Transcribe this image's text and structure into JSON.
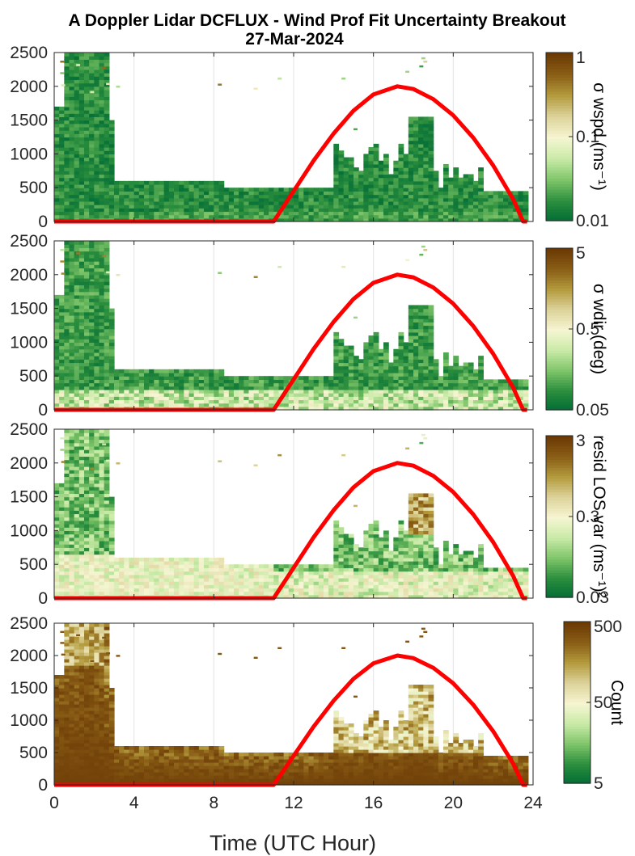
{
  "title": "A Doppler Lidar DCFLUX - Wind Prof Fit Uncertainty Breakout",
  "subtitle": "27-Mar-2024",
  "xlabel": "Time (UTC Hour)",
  "colors": {
    "curve": "#ff0000",
    "colormap": [
      "#006b36",
      "#2c8f3e",
      "#7fc56a",
      "#c9eaa7",
      "#f6f5d2",
      "#ddd39a",
      "#b39b3e",
      "#8a5e16",
      "#6b3a05"
    ]
  },
  "chart_data": [
    {
      "type": "heatmap",
      "name": "sigma-wspd",
      "xlim": [
        0,
        24
      ],
      "ylim": [
        0,
        2500
      ],
      "xticks": [
        0,
        4,
        8,
        12,
        16,
        20,
        24
      ],
      "yticks": [
        0,
        500,
        1000,
        1500,
        2000,
        2500
      ],
      "grid": true,
      "colorbar": {
        "label": "σ wspd (ms⁻¹)",
        "scale": "log",
        "range": [
          0.01,
          1
        ],
        "ticks": [
          "1",
          "0.1",
          "0.01"
        ]
      },
      "overlay": {
        "type": "line",
        "color": "#ff0000",
        "x": [
          0,
          11,
          12,
          13,
          14,
          15,
          16,
          17.2,
          18,
          19,
          20,
          21,
          22,
          23,
          23.5,
          23.7
        ],
        "y": [
          0,
          0,
          450,
          900,
          1300,
          1640,
          1880,
          2000,
          1960,
          1810,
          1570,
          1240,
          830,
          330,
          0,
          0
        ]
      }
    },
    {
      "type": "heatmap",
      "name": "sigma-wdir",
      "xlim": [
        0,
        24
      ],
      "ylim": [
        0,
        2500
      ],
      "xticks": [
        0,
        4,
        8,
        12,
        16,
        20,
        24
      ],
      "yticks": [
        0,
        500,
        1000,
        1500,
        2000,
        2500
      ],
      "grid": true,
      "colorbar": {
        "label": "σ wdir (deg)",
        "scale": "log",
        "range": [
          0.05,
          5
        ],
        "ticks": [
          "5",
          "0.5",
          "0.05"
        ]
      },
      "overlay": {
        "type": "line",
        "color": "#ff0000",
        "x": [
          0,
          11,
          12,
          13,
          14,
          15,
          16,
          17.2,
          18,
          19,
          20,
          21,
          22,
          23,
          23.5,
          23.7
        ],
        "y": [
          0,
          0,
          450,
          900,
          1300,
          1640,
          1880,
          2000,
          1960,
          1810,
          1570,
          1240,
          830,
          330,
          0,
          0
        ]
      }
    },
    {
      "type": "heatmap",
      "name": "resid-los-var",
      "xlim": [
        0,
        24
      ],
      "ylim": [
        0,
        2500
      ],
      "xticks": [
        0,
        4,
        8,
        12,
        16,
        20,
        24
      ],
      "yticks": [
        0,
        500,
        1000,
        1500,
        2000,
        2500
      ],
      "grid": true,
      "colorbar": {
        "label": "resid LOS var (ms⁻¹)²",
        "scale": "log",
        "range": [
          0.03,
          3
        ],
        "ticks": [
          "3",
          "0.3",
          "0.03"
        ]
      },
      "overlay": {
        "type": "line",
        "color": "#ff0000",
        "x": [
          0,
          11,
          12,
          13,
          14,
          15,
          16,
          17.2,
          18,
          19,
          20,
          21,
          22,
          23,
          23.5,
          23.7
        ],
        "y": [
          0,
          0,
          450,
          900,
          1300,
          1640,
          1880,
          2000,
          1960,
          1810,
          1570,
          1240,
          830,
          330,
          0,
          0
        ]
      }
    },
    {
      "type": "heatmap",
      "name": "count",
      "xlim": [
        0,
        24
      ],
      "ylim": [
        0,
        2500
      ],
      "xticks": [
        0,
        4,
        8,
        12,
        16,
        20,
        24
      ],
      "xticklabels": [
        "0",
        "4",
        "8",
        "12",
        "16",
        "20",
        "24"
      ],
      "yticks": [
        0,
        500,
        1000,
        1500,
        2000,
        2500
      ],
      "grid": true,
      "colorbar": {
        "label": "Count",
        "scale": "log",
        "range": [
          1,
          500
        ],
        "ticks": [
          "500",
          "50",
          "5"
        ]
      },
      "overlay": {
        "type": "line",
        "color": "#ff0000",
        "x": [
          0,
          11,
          12,
          13,
          14,
          15,
          16,
          17.2,
          18,
          19,
          20,
          21,
          22,
          23,
          23.5,
          23.7
        ],
        "y": [
          0,
          0,
          450,
          900,
          1300,
          1640,
          1880,
          2000,
          1960,
          1810,
          1570,
          1240,
          830,
          330,
          0,
          0
        ]
      }
    }
  ]
}
